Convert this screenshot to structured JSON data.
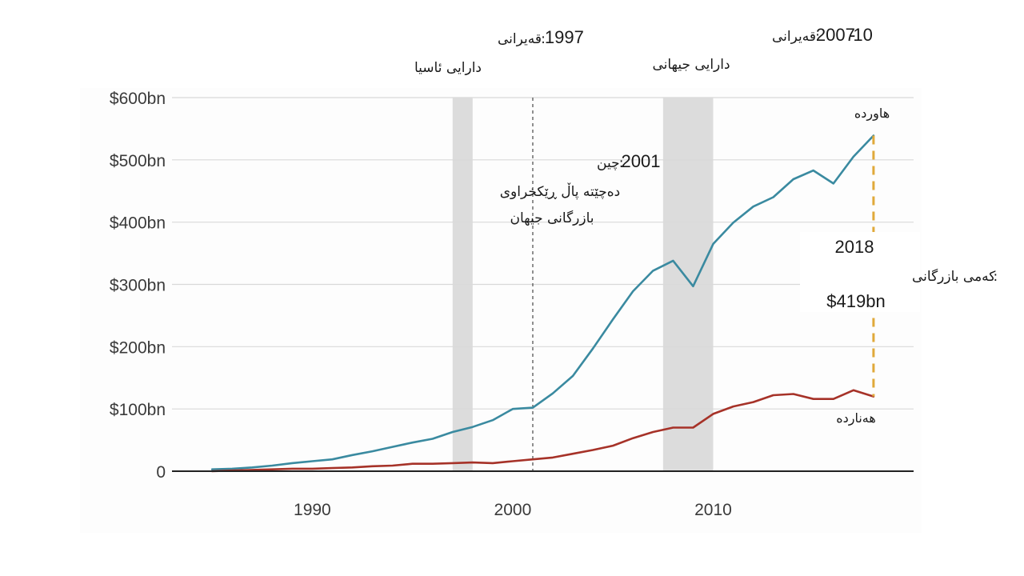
{
  "chart_data": {
    "type": "line",
    "x_range": [
      1983,
      2020
    ],
    "ylim": [
      0,
      600
    ],
    "y_ticks": [
      {
        "value": 0,
        "label": "0"
      },
      {
        "value": 100,
        "label": "$100bn"
      },
      {
        "value": 200,
        "label": "$200bn"
      },
      {
        "value": 300,
        "label": "$300bn"
      },
      {
        "value": 400,
        "label": "$400bn"
      },
      {
        "value": 500,
        "label": "$500bn"
      },
      {
        "value": 600,
        "label": "$600bn"
      }
    ],
    "x_ticks": [
      {
        "value": 1990,
        "label": "1990"
      },
      {
        "value": 2000,
        "label": "2000"
      },
      {
        "value": 2010,
        "label": "2010"
      }
    ],
    "shaded_periods": [
      {
        "name": "asian-crisis",
        "start": 1997,
        "end": 1998
      },
      {
        "name": "global-crisis",
        "start": 2007.5,
        "end": 2010
      }
    ],
    "event_line": {
      "x": 2001
    },
    "gap_line": {
      "x": 2018,
      "y_from": 120,
      "y_to": 539,
      "color": "#e0a93a"
    },
    "series": [
      {
        "name": "هاوردە",
        "color": "#3a8aa0",
        "x": [
          1985,
          1986,
          1987,
          1988,
          1989,
          1990,
          1991,
          1992,
          1993,
          1994,
          1995,
          1996,
          1997,
          1998,
          1999,
          2000,
          2001,
          2002,
          2003,
          2004,
          2005,
          2006,
          2007,
          2008,
          2009,
          2010,
          2011,
          2012,
          2013,
          2014,
          2015,
          2016,
          2017,
          2018
        ],
        "values": [
          3,
          4,
          6,
          9,
          13,
          16,
          19,
          26,
          32,
          39,
          46,
          52,
          63,
          71,
          82,
          100,
          102,
          125,
          153,
          197,
          244,
          289,
          322,
          338,
          297,
          365,
          399,
          425,
          440,
          469,
          483,
          462,
          505,
          539
        ]
      },
      {
        "name": "هەناردە",
        "color": "#a63228",
        "x": [
          1985,
          1986,
          1987,
          1988,
          1989,
          1990,
          1991,
          1992,
          1993,
          1994,
          1995,
          1996,
          1997,
          1998,
          1999,
          2000,
          2001,
          2002,
          2003,
          2004,
          2005,
          2006,
          2007,
          2008,
          2009,
          2010,
          2011,
          2012,
          2013,
          2014,
          2015,
          2016,
          2017,
          2018
        ],
        "values": [
          0,
          1,
          2,
          3,
          4,
          4,
          5,
          6,
          8,
          9,
          12,
          12,
          13,
          14,
          13,
          16,
          19,
          22,
          28,
          34,
          41,
          53,
          63,
          70,
          70,
          92,
          104,
          111,
          122,
          124,
          116,
          116,
          130,
          120
        ]
      }
    ],
    "annotations": {
      "asian_crisis": {
        "year": "1997",
        "sep": ":",
        "label": "قەیرانی",
        "desc": "دارایی ئاسیا"
      },
      "global_crisis": {
        "year_start": "2007",
        "dash": "-",
        "year_end": "10",
        "sep": ":",
        "label": "قەیرانی",
        "desc": "دارایی جیهانی"
      },
      "china_wto": {
        "year": "2001",
        "sep": ":",
        "label": "چین",
        "desc_line1": "دەچێتە پاڵ ڕێکخراوی",
        "desc_line2": "بازرگانی جیهان"
      },
      "trade_gap": {
        "year": "2018",
        "sep": ":",
        "label": "کەمی بازرگانی",
        "value": "$419bn"
      }
    },
    "series_labels": {
      "imports": "هاوردە",
      "exports": "هەناردە"
    }
  }
}
